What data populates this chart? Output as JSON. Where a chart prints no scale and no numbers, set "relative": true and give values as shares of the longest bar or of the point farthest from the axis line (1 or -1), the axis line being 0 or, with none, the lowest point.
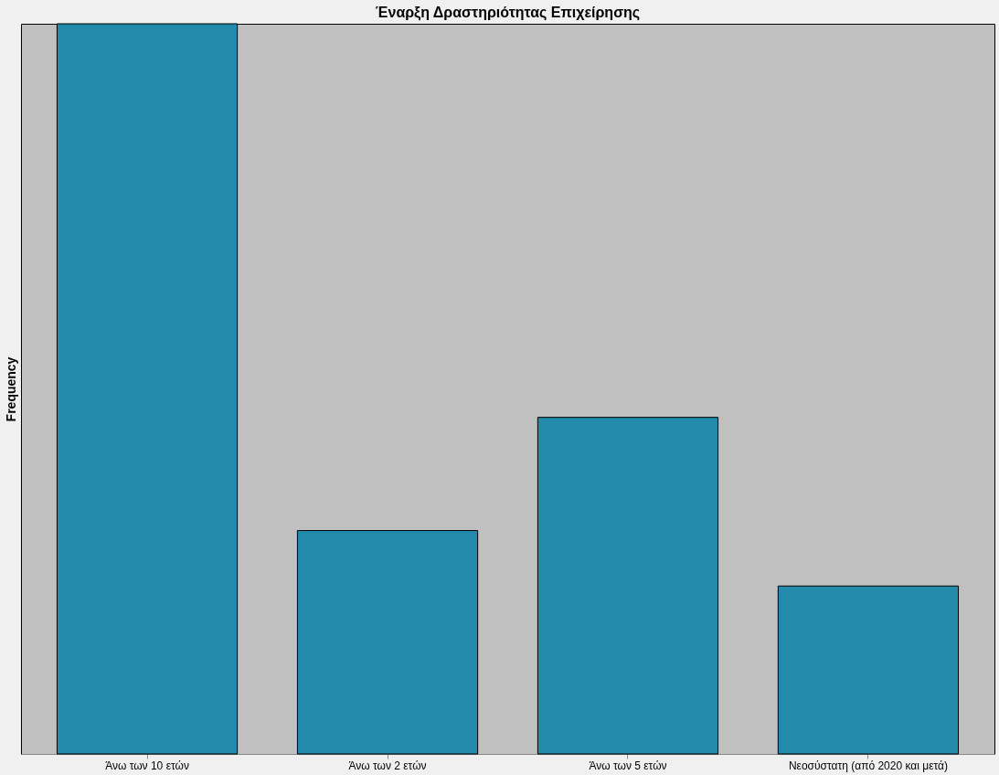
{
  "chart_data": {
    "type": "bar",
    "title": "Έναρξη Δραστηριότητας Επιχείρησης",
    "ylabel": "Frequency",
    "relative": true,
    "categories": [
      "Άνω των 10 ετών",
      "Άνω των 2 ετών",
      "Άνω των 5 ετών",
      "Νεοσύστατη (από 2020 και μετά)"
    ],
    "values": [
      1,
      0.306,
      0.461,
      0.23
    ],
    "color": "#238aab",
    "grid": false
  }
}
